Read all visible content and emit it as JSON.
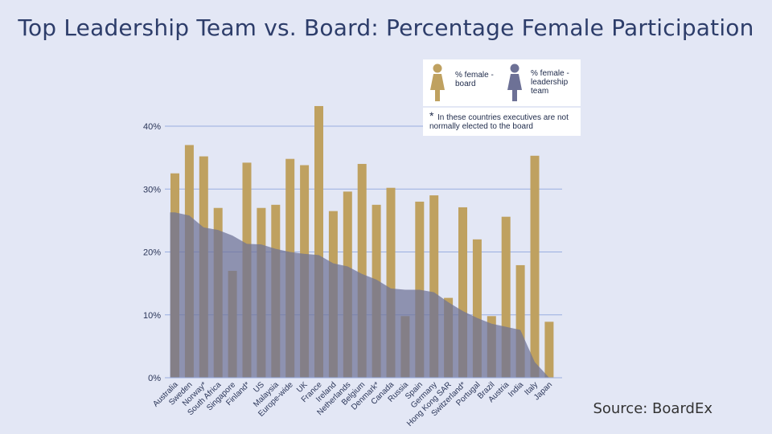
{
  "title": "Top Leadership Team vs. Board: Percentage Female Participation",
  "source": "Source: BoardEx",
  "legend": {
    "board": "% female - board",
    "leadership": "% female - leadership team",
    "note_star": "*",
    "note": "In these countries executives are not normally elected to the board"
  },
  "colors": {
    "board": "#bfa160",
    "leadership": "#6d7196",
    "grid": "#9aaee0",
    "text": "#2a3558"
  },
  "chart_data": {
    "type": "bar",
    "title": "Top Leadership Team vs. Board: Percentage Female Participation",
    "ylim": [
      0,
      45
    ],
    "yticks": [
      0,
      10,
      20,
      30,
      40
    ],
    "ytick_labels": [
      "0%",
      "10%",
      "20%",
      "30%",
      "40%"
    ],
    "grid": true,
    "legend_position": "top-right",
    "categories": [
      "Australia",
      "Sweden",
      "Norway*",
      "South Africa",
      "Singapore",
      "Finland*",
      "US",
      "Malaysia",
      "Europe-wide",
      "UK",
      "France",
      "Ireland",
      "Netherlands",
      "Belgium",
      "Denmark*",
      "Canada",
      "Russia",
      "Spain",
      "Germany",
      "Hong Kong SAR",
      "Switzerland*",
      "Portugal",
      "Brazil",
      "Austria",
      "India",
      "Italy",
      "Japan"
    ],
    "series": [
      {
        "name": "% female - board",
        "type": "bar",
        "values": [
          32.5,
          37,
          35.2,
          27,
          17,
          34.2,
          27,
          27.5,
          34.8,
          33.8,
          43.2,
          26.5,
          29.6,
          34,
          27.5,
          30.2,
          9.8,
          28,
          29,
          12.7,
          27.1,
          22,
          9.8,
          25.6,
          17.9,
          35.3,
          8.9
        ]
      },
      {
        "name": "% female - leadership team",
        "type": "area",
        "values": [
          26.3,
          25.8,
          23.9,
          23.5,
          22.6,
          21.3,
          21.2,
          20.5,
          20.0,
          19.7,
          19.5,
          18.2,
          17.7,
          16.5,
          15.6,
          14.2,
          14.0,
          14.0,
          13.6,
          12.0,
          10.6,
          9.5,
          8.6,
          8.1,
          7.6,
          2.5,
          0
        ]
      }
    ]
  }
}
